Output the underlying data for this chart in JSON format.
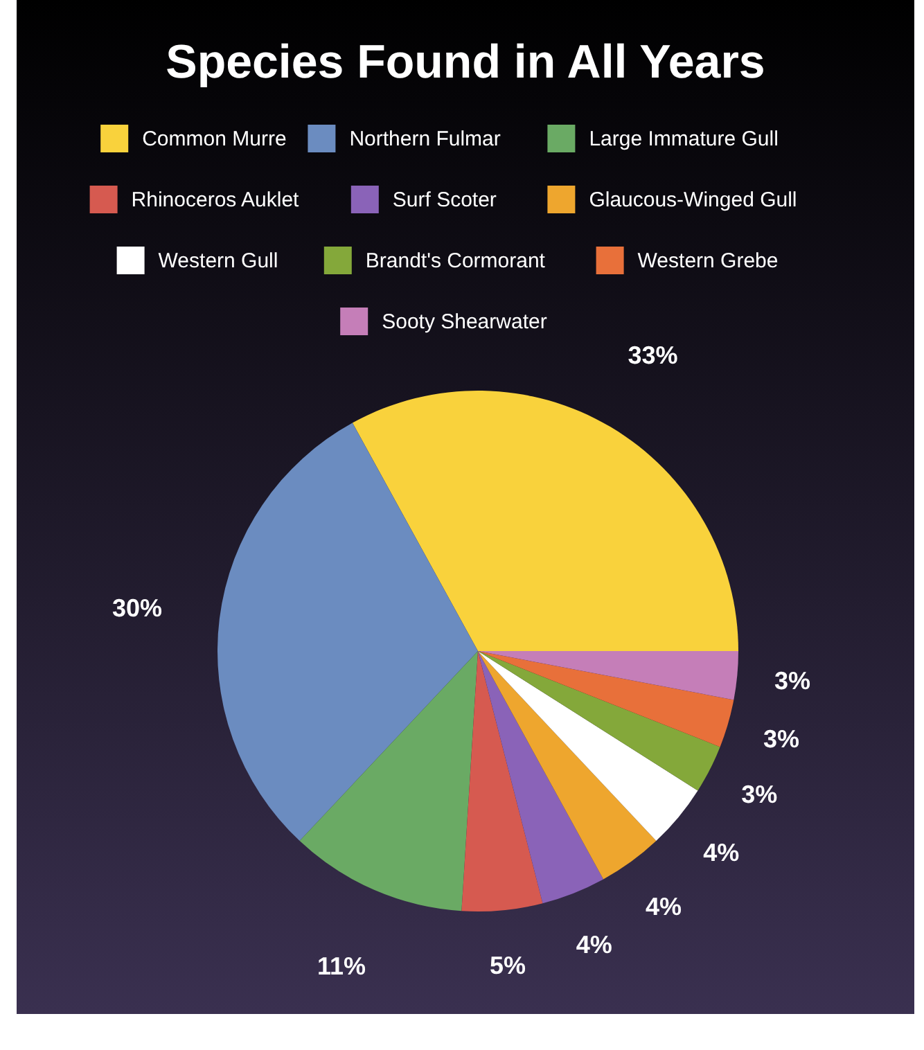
{
  "chart_data": {
    "type": "pie",
    "title": "Species Found in All Years",
    "legend": "top",
    "categories": [
      "Common Murre",
      "Northern Fulmar",
      "Large Immature Gull",
      "Rhinoceros Auklet",
      "Surf Scoter",
      "Glaucous-Winged Gull",
      "Western Gull",
      "Brandt's Cormorant",
      "Western Grebe",
      "Sooty Shearwater"
    ],
    "values": [
      33,
      30,
      11,
      5,
      4,
      4,
      4,
      3,
      3,
      3
    ],
    "value_labels": [
      "33%",
      "30%",
      "11%",
      "5%",
      "4%",
      "4%",
      "4%",
      "3%",
      "3%",
      "3%"
    ],
    "colors": [
      "#f9d23c",
      "#6b8cc0",
      "#6aaa64",
      "#d65a50",
      "#8a63b8",
      "#eea62e",
      "#ffffff",
      "#84a83a",
      "#e8703a",
      "#c57eb8"
    ]
  }
}
